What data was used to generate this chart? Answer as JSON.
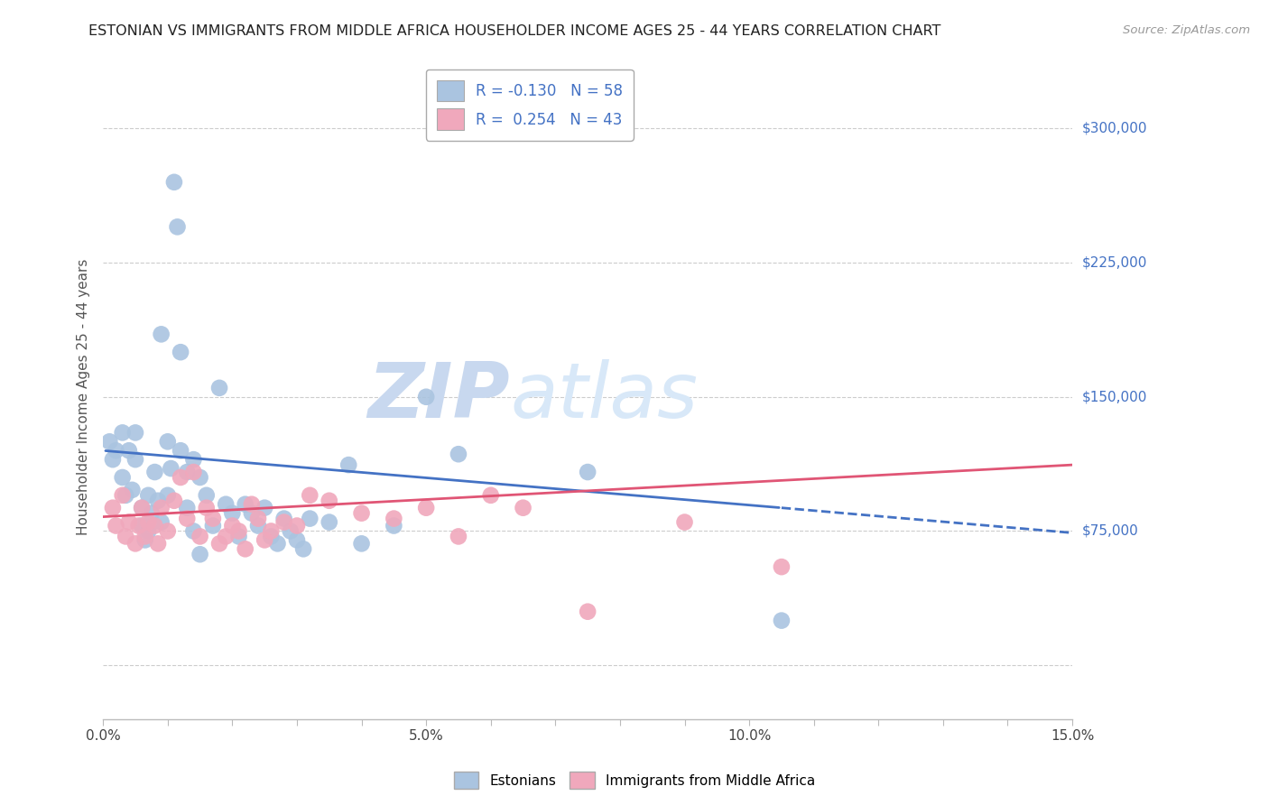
{
  "title": "ESTONIAN VS IMMIGRANTS FROM MIDDLE AFRICA HOUSEHOLDER INCOME AGES 25 - 44 YEARS CORRELATION CHART",
  "source": "Source: ZipAtlas.com",
  "ylabel": "Householder Income Ages 25 - 44 years",
  "xlim": [
    0.0,
    15.0
  ],
  "ylim": [
    -30000,
    330000
  ],
  "yticks": [
    0,
    75000,
    150000,
    225000,
    300000
  ],
  "ytick_labels": [
    "",
    "$75,000",
    "$150,000",
    "$225,000",
    "$300,000"
  ],
  "xticks": [
    0.0,
    1.0,
    2.0,
    3.0,
    4.0,
    5.0,
    6.0,
    7.0,
    8.0,
    9.0,
    10.0,
    11.0,
    12.0,
    13.0,
    14.0,
    15.0
  ],
  "xtick_major_labels": [
    "0.0%",
    "",
    "",
    "",
    "",
    "5.0%",
    "",
    "",
    "",
    "",
    "10.0%",
    "",
    "",
    "",
    "",
    "15.0%"
  ],
  "color_estonian": "#aac4e0",
  "color_immigrant": "#f0a8bc",
  "color_line_estonian": "#4472c4",
  "color_line_immigrant": "#e05575",
  "color_ytick_label": "#4472c4",
  "watermark_zip": "ZIP",
  "watermark_atlas": "atlas",
  "watermark_color": "#d0ddf0",
  "background_color": "#ffffff",
  "grid_color": "#cccccc",
  "estonians_x": [
    0.1,
    0.15,
    0.2,
    0.3,
    0.3,
    0.35,
    0.4,
    0.45,
    0.5,
    0.5,
    0.6,
    0.6,
    0.65,
    0.7,
    0.7,
    0.75,
    0.8,
    0.85,
    0.9,
    0.9,
    1.0,
    1.0,
    1.05,
    1.1,
    1.15,
    1.2,
    1.2,
    1.3,
    1.3,
    1.4,
    1.4,
    1.5,
    1.5,
    1.6,
    1.7,
    1.8,
    1.9,
    2.0,
    2.1,
    2.2,
    2.3,
    2.4,
    2.5,
    2.6,
    2.7,
    2.8,
    2.9,
    3.0,
    3.1,
    3.2,
    3.5,
    3.8,
    4.0,
    4.5,
    5.0,
    5.5,
    7.5,
    10.5
  ],
  "estonians_y": [
    125000,
    115000,
    120000,
    130000,
    105000,
    95000,
    120000,
    98000,
    130000,
    115000,
    88000,
    78000,
    70000,
    95000,
    75000,
    85000,
    108000,
    92000,
    185000,
    80000,
    125000,
    95000,
    110000,
    270000,
    245000,
    175000,
    120000,
    108000,
    88000,
    115000,
    75000,
    105000,
    62000,
    95000,
    78000,
    155000,
    90000,
    85000,
    72000,
    90000,
    85000,
    78000,
    88000,
    72000,
    68000,
    82000,
    75000,
    70000,
    65000,
    82000,
    80000,
    112000,
    68000,
    78000,
    150000,
    118000,
    108000,
    25000
  ],
  "immigrants_x": [
    0.15,
    0.2,
    0.3,
    0.35,
    0.4,
    0.5,
    0.55,
    0.6,
    0.65,
    0.7,
    0.8,
    0.85,
    0.9,
    1.0,
    1.1,
    1.2,
    1.3,
    1.4,
    1.5,
    1.6,
    1.7,
    1.8,
    1.9,
    2.0,
    2.1,
    2.2,
    2.3,
    2.4,
    2.5,
    2.6,
    2.8,
    3.0,
    3.2,
    3.5,
    4.0,
    4.5,
    5.0,
    5.5,
    6.0,
    6.5,
    7.5,
    9.0,
    10.5
  ],
  "immigrants_y": [
    88000,
    78000,
    95000,
    72000,
    80000,
    68000,
    78000,
    88000,
    72000,
    80000,
    78000,
    68000,
    88000,
    75000,
    92000,
    105000,
    82000,
    108000,
    72000,
    88000,
    82000,
    68000,
    72000,
    78000,
    75000,
    65000,
    90000,
    82000,
    70000,
    75000,
    80000,
    78000,
    95000,
    92000,
    85000,
    82000,
    88000,
    72000,
    95000,
    88000,
    30000,
    80000,
    55000
  ],
  "trend_estonian_x0": 0.0,
  "trend_estonian_y0": 120000,
  "trend_estonian_x1": 10.5,
  "trend_estonian_y1": 88000,
  "trend_estonian_dash_x0": 10.5,
  "trend_estonian_dash_y0": 88000,
  "trend_estonian_dash_x1": 15.0,
  "trend_estonian_dash_y1": 74000,
  "trend_immigrant_x0": 0.0,
  "trend_immigrant_y0": 83000,
  "trend_immigrant_x1": 15.0,
  "trend_immigrant_y1": 112000
}
